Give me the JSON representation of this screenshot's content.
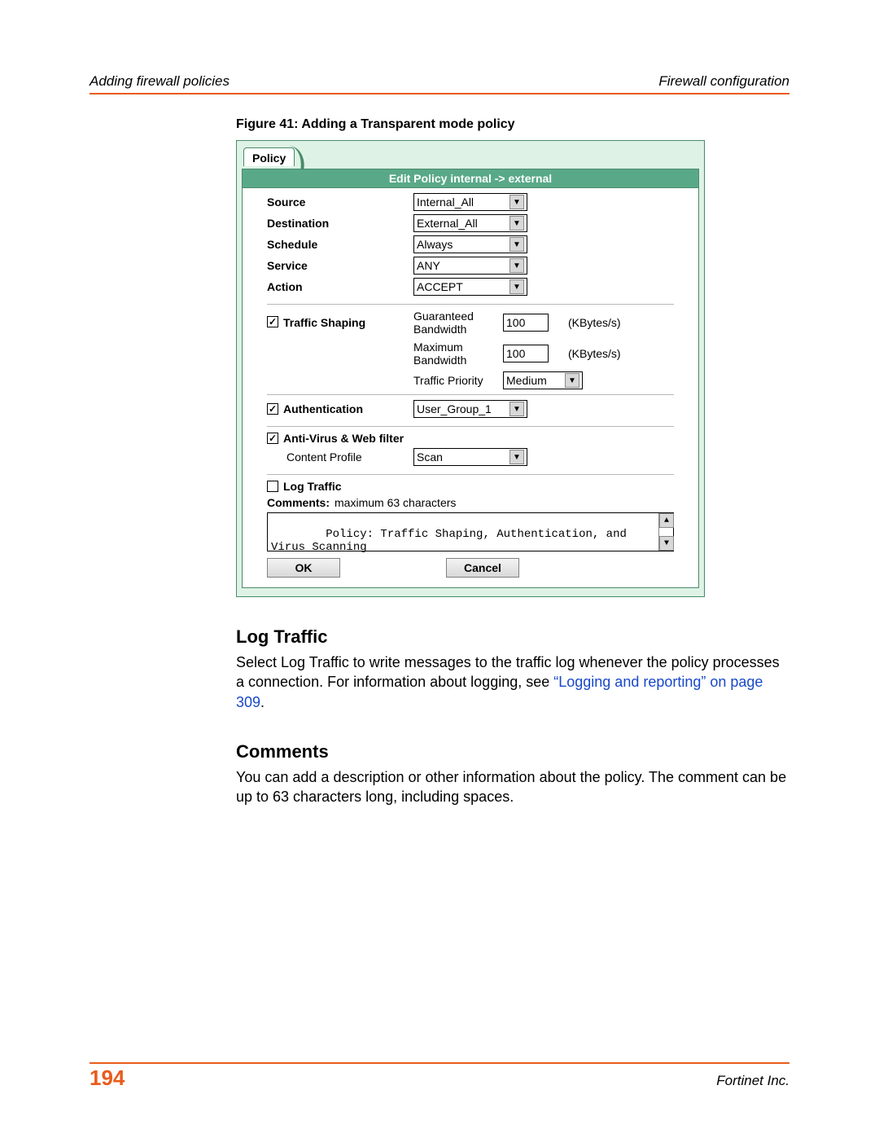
{
  "colors": {
    "accent_orange": "#e85c1c",
    "panel_bg": "#dff2e6",
    "panel_border": "#4a8a6a",
    "titlebar_bg": "#59a988",
    "titlebar_text": "#ffffff",
    "link": "#1848c8",
    "text": "#000000",
    "divider": "#b8b8b8"
  },
  "header": {
    "left": "Adding firewall policies",
    "right": "Firewall configuration"
  },
  "figure_caption": "Figure 41: Adding a Transparent mode policy",
  "policy_tab": "Policy",
  "panel_title": "Edit Policy internal -> external",
  "basic_fields": {
    "source": {
      "label": "Source",
      "value": "Internal_All"
    },
    "destination": {
      "label": "Destination",
      "value": "External_All"
    },
    "schedule": {
      "label": "Schedule",
      "value": "Always"
    },
    "service": {
      "label": "Service",
      "value": "ANY"
    },
    "action": {
      "label": "Action",
      "value": "ACCEPT"
    }
  },
  "traffic_shaping": {
    "checkbox_label": "Traffic Shaping",
    "checked": true,
    "guaranteed_label": "Guaranteed Bandwidth",
    "guaranteed_value": "100",
    "guaranteed_unit": "(KBytes/s)",
    "maximum_label": "Maximum Bandwidth",
    "maximum_value": "100",
    "maximum_unit": "(KBytes/s)",
    "priority_label": "Traffic Priority",
    "priority_value": "Medium"
  },
  "authentication": {
    "checkbox_label": "Authentication",
    "checked": true,
    "value": "User_Group_1"
  },
  "avwf": {
    "checkbox_label": "Anti-Virus & Web filter",
    "checked": true,
    "content_profile_label": "Content Profile",
    "content_profile_value": "Scan"
  },
  "log_traffic": {
    "checkbox_label": "Log Traffic",
    "checked": false
  },
  "comments": {
    "label": "Comments:",
    "hint": " maximum 63 characters",
    "value": "Policy: Traffic Shaping, Authentication, and Virus Scanning"
  },
  "buttons": {
    "ok": "OK",
    "cancel": "Cancel"
  },
  "sections": {
    "log_traffic_head": "Log Traffic",
    "log_traffic_body_a": "Select Log Traffic to write messages to the traffic log whenever the policy processes a connection. For information about logging, see ",
    "log_traffic_link": "“Logging and reporting” on page 309",
    "log_traffic_body_b": ".",
    "comments_head": "Comments",
    "comments_body": "You can add a description or other information about the policy. The comment can be up to 63 characters long, including spaces."
  },
  "footer": {
    "page_number": "194",
    "right": "Fortinet Inc."
  }
}
